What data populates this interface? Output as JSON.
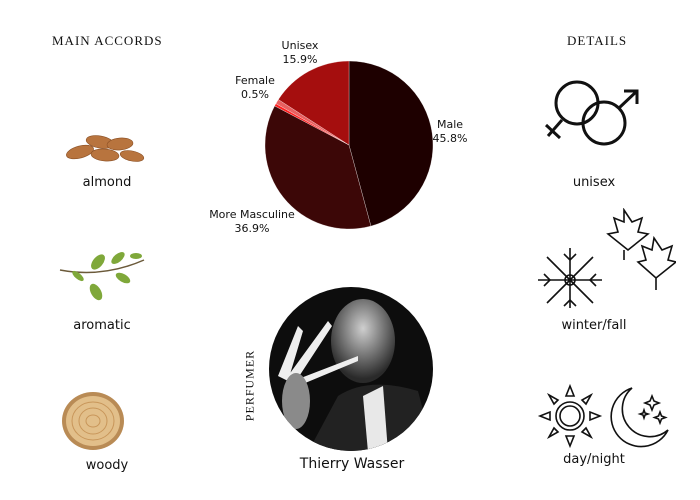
{
  "headings": {
    "main_accords": "MAIN ACCORDS",
    "details": "DETAILS",
    "perfumer": "PERFUMER"
  },
  "accords": [
    {
      "label": "almond",
      "icon": "almond-icon"
    },
    {
      "label": "aromatic",
      "icon": "herb-sprig-icon"
    },
    {
      "label": "woody",
      "icon": "wood-slice-icon"
    }
  ],
  "details": [
    {
      "label": "unisex",
      "icon": "male-female-icon"
    },
    {
      "label": "winter/fall",
      "icon": "snowflake-leaves-icon"
    },
    {
      "label": "day/night",
      "icon": "sun-moon-icon"
    }
  ],
  "perfumer": {
    "name": "Thierry Wasser"
  },
  "chart_data": {
    "type": "pie",
    "start": "top, clockwise",
    "slices": [
      {
        "label": "Male",
        "value": 45.8,
        "value_label": "45.8%",
        "color": "#1e0000"
      },
      {
        "label": "More Masculine",
        "value": 36.9,
        "value_label": "36.9%",
        "color": "#3c0707"
      },
      {
        "label": "Female",
        "value": 0.5,
        "value_label": "0.5%",
        "color": "#ff1f1f"
      },
      {
        "label": "",
        "value": 0.9,
        "value_label": "",
        "color": "#e86060"
      },
      {
        "label": "Unisex",
        "value": 15.9,
        "value_label": "15.9%",
        "color": "#a50e0e"
      }
    ]
  }
}
